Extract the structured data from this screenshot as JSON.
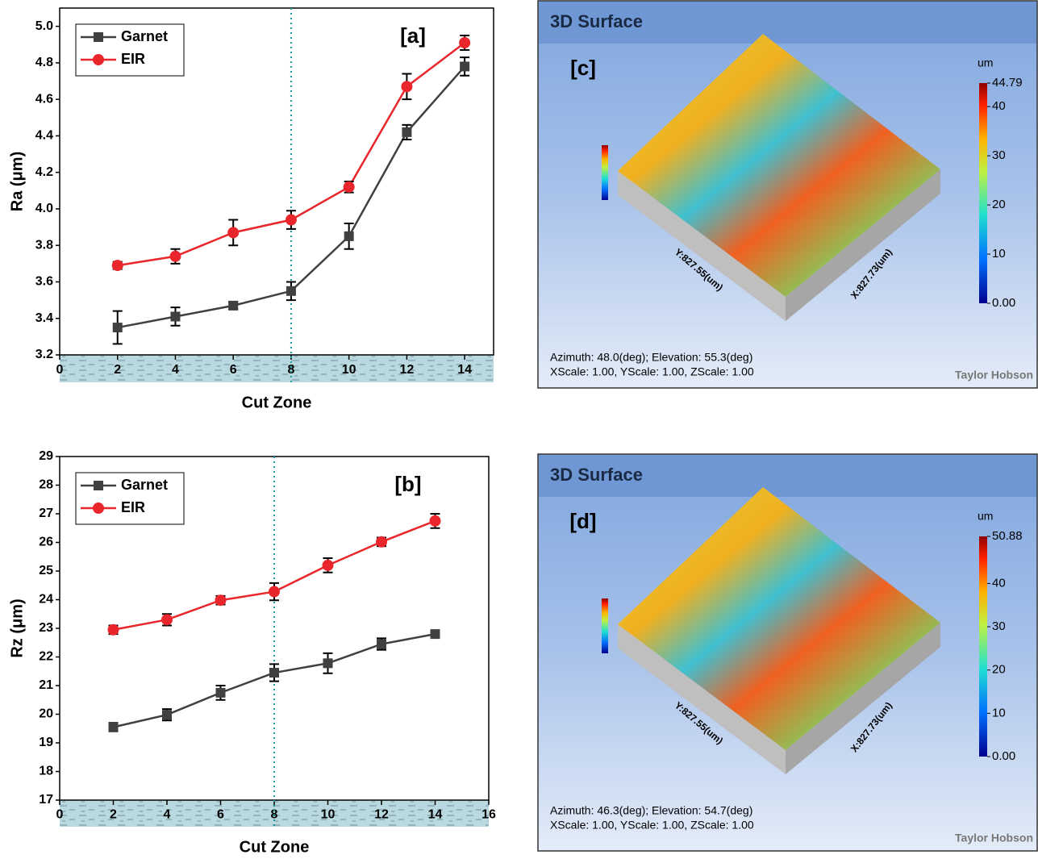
{
  "chart_data": [
    {
      "type": "line",
      "panel_label": "[a]",
      "xlabel": "Cut Zone",
      "ylabel": "Ra (μm)",
      "x": [
        2,
        4,
        6,
        8,
        10,
        12,
        14
      ],
      "series": [
        {
          "name": "Garnet",
          "color": "#404040",
          "marker": "square",
          "values": [
            3.35,
            3.41,
            3.47,
            3.55,
            3.85,
            4.42,
            4.78
          ],
          "errors": [
            0.09,
            0.05,
            0.02,
            0.05,
            0.07,
            0.04,
            0.05
          ]
        },
        {
          "name": "EIR",
          "color": "#e8262b",
          "marker": "circle",
          "values": [
            3.69,
            3.74,
            3.87,
            3.94,
            4.12,
            4.67,
            4.91
          ],
          "errors": [
            0.02,
            0.04,
            0.07,
            0.05,
            0.03,
            0.07,
            0.04
          ]
        }
      ],
      "xlim": [
        0,
        15
      ],
      "xticks": [
        0,
        2,
        4,
        6,
        8,
        10,
        12,
        14
      ],
      "ylim": [
        3.2,
        5.1
      ],
      "yticks": [
        3.2,
        3.4,
        3.6,
        3.8,
        {
          "value": 4,
          "label": "4.0"
        },
        4.2,
        4.4,
        4.6,
        4.8,
        {
          "value": 5,
          "label": "5.0"
        }
      ],
      "vline": 8,
      "legend": "upper left"
    },
    {
      "type": "line",
      "panel_label": "[b]",
      "xlabel": "Cut Zone",
      "ylabel": "Rz (μm)",
      "x": [
        2,
        4,
        6,
        8,
        10,
        12,
        14
      ],
      "series": [
        {
          "name": "Garnet",
          "color": "#404040",
          "marker": "square",
          "values": [
            19.55,
            19.98,
            20.75,
            21.45,
            21.78,
            22.45,
            22.8
          ],
          "errors": [
            0.15,
            0.2,
            0.25,
            0.3,
            0.35,
            0.2,
            0.1
          ]
        },
        {
          "name": "EIR",
          "color": "#e8262b",
          "marker": "circle",
          "values": [
            22.95,
            23.3,
            23.98,
            24.28,
            25.2,
            26.02,
            26.75
          ],
          "errors": [
            0.15,
            0.2,
            0.15,
            0.3,
            0.25,
            0.15,
            0.25
          ]
        }
      ],
      "xlim": [
        0,
        16
      ],
      "xticks": [
        0,
        2,
        4,
        6,
        8,
        10,
        12,
        14,
        16
      ],
      "ylim": [
        17,
        29
      ],
      "yticks": [
        17,
        18,
        19,
        20,
        21,
        22,
        23,
        24,
        25,
        26,
        27,
        28,
        29
      ],
      "vline": 8,
      "legend": "upper left"
    }
  ],
  "surfaces": [
    {
      "title": "3D Surface",
      "panel_label": "[c]",
      "unit": "um",
      "clim": [
        0,
        44.79
      ],
      "colorbar_ticks": [
        {
          "value": 0,
          "label": "0.00"
        },
        10,
        20,
        30,
        40,
        44.79
      ],
      "ylabel": "Y:827.55(um)",
      "xlabel": "X:827.73(um)",
      "info": [
        "Azimuth: 48.0(deg); Elevation: 55.3(deg)",
        "XScale: 1.00, YScale: 1.00, ZScale: 1.00"
      ],
      "brand": "Taylor Hobson"
    },
    {
      "title": "3D Surface",
      "panel_label": "[d]",
      "unit": "um",
      "clim": [
        0,
        50.88
      ],
      "colorbar_ticks": [
        {
          "value": 0,
          "label": "0.00"
        },
        10,
        20,
        30,
        40,
        50.88
      ],
      "ylabel": "Y:827.55(um)",
      "xlabel": "X:827.73(um)",
      "info": [
        "Azimuth: 46.3(deg); Elevation: 54.7(deg)",
        "XScale: 1.00, YScale: 1.00, ZScale: 1.00"
      ],
      "brand": "Taylor Hobson"
    }
  ]
}
